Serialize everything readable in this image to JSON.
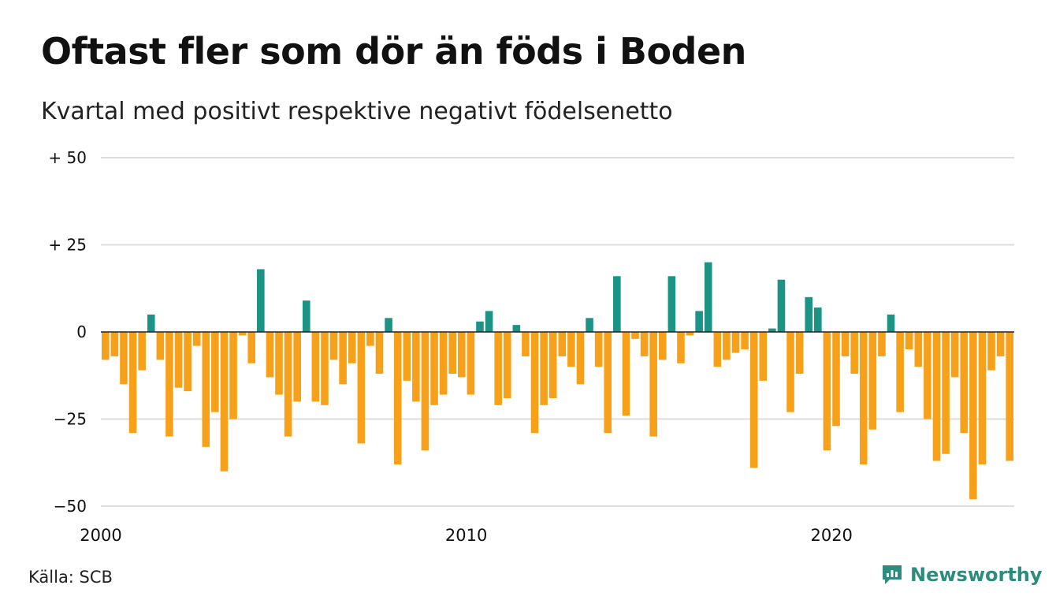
{
  "header": {
    "title": "Oftast fler som dör än föds i Boden",
    "subtitle": "Kvartal med positivt respektive negativt födelsenetto"
  },
  "footer": {
    "source": "Källa: SCB",
    "brand": "Newsworthy"
  },
  "colors": {
    "positive": "#1b9385",
    "negative": "#f7a11a",
    "grid": "#dddddd",
    "zero_line": "#222222",
    "brand": "#2d8c7e"
  },
  "chart_data": {
    "type": "bar",
    "title": "Oftast fler som dör än föds i Boden",
    "subtitle": "Kvartal med positivt respektive negativt födelsenetto",
    "xlabel": "",
    "ylabel": "",
    "ylim": [
      -50,
      50
    ],
    "yticks": [
      {
        "value": 50,
        "label": "+ 50"
      },
      {
        "value": 25,
        "label": "+ 25"
      },
      {
        "value": 0,
        "label": "0"
      },
      {
        "value": -25,
        "label": "−25"
      },
      {
        "value": -50,
        "label": "−50"
      }
    ],
    "xticks": [
      {
        "value": 2000,
        "label": "2000"
      },
      {
        "value": 2010,
        "label": "2010"
      },
      {
        "value": 2020,
        "label": "2020"
      }
    ],
    "x_start": 2000,
    "periods_per_year": 4,
    "grid": true,
    "values": [
      -8,
      -7,
      -15,
      -29,
      -11,
      5,
      -8,
      -30,
      -16,
      -17,
      -4,
      -33,
      -23,
      -40,
      -25,
      -1,
      -9,
      18,
      -13,
      -18,
      -30,
      -20,
      9,
      -20,
      -21,
      -8,
      -15,
      -9,
      -32,
      -4,
      -12,
      4,
      -38,
      -14,
      -20,
      -34,
      -21,
      -18,
      -12,
      -13,
      -18,
      3,
      6,
      -21,
      -19,
      2,
      -7,
      -29,
      -21,
      -19,
      -7,
      -10,
      -15,
      4,
      -10,
      -29,
      16,
      -24,
      -2,
      -7,
      -30,
      -8,
      16,
      -9,
      -1,
      6,
      20,
      -10,
      -8,
      -6,
      -5,
      -39,
      -14,
      1,
      15,
      -23,
      -12,
      10,
      7,
      -34,
      -27,
      -7,
      -12,
      -38,
      -28,
      -7,
      5,
      -23,
      -5,
      -10,
      -25,
      -37,
      -35,
      -13,
      -29,
      -48,
      -38,
      -11,
      -7,
      -37
    ]
  }
}
